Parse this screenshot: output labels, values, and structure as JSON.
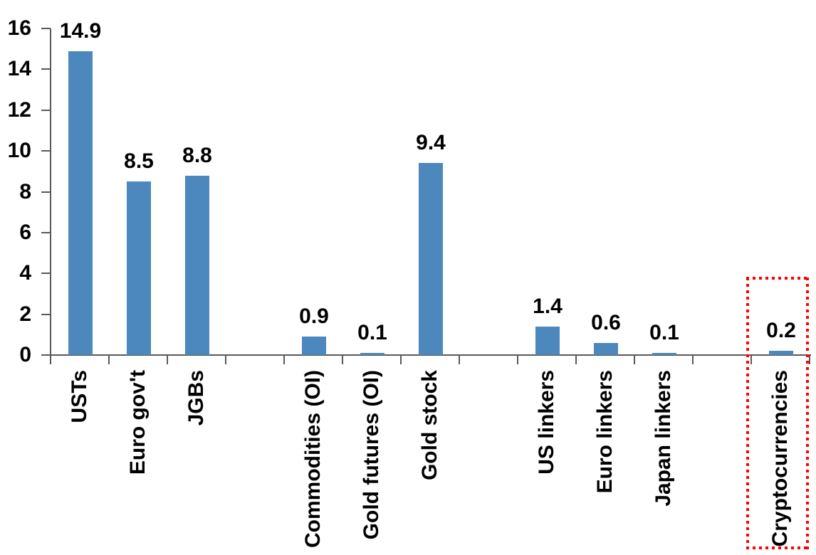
{
  "chart_data": {
    "type": "bar",
    "title": "",
    "xlabel": "",
    "ylabel": "",
    "categories": [
      "USTs",
      "Euro gov't",
      "JGBs",
      "Commodities (OI)",
      "Gold futures (OI)",
      "Gold stock",
      "US linkers",
      "Euro linkers",
      "Japan linkers",
      "Cryptocurrencies"
    ],
    "values": [
      14.9,
      8.5,
      8.8,
      0.9,
      0.1,
      9.4,
      1.4,
      0.6,
      0.1,
      0.2
    ],
    "value_labels": [
      "14.9",
      "8.5",
      "8.8",
      "0.9",
      "0.1",
      "9.4",
      "1.4",
      "0.6",
      "0.1",
      "0.2"
    ],
    "y_ticks": [
      0,
      2,
      4,
      6,
      8,
      10,
      12,
      14,
      16
    ],
    "ylim": [
      0,
      16
    ],
    "grid": "off",
    "legend": "none",
    "layout_hints": {
      "slots": [
        1,
        2,
        3,
        5,
        6,
        7,
        9,
        10,
        11,
        13
      ],
      "n_slots": 13,
      "category_label_rotation": "vertical-bottom-to-top"
    },
    "colors": {
      "bar": "#4C87BE",
      "axis": "#595959",
      "text": "#000000"
    },
    "highlight": {
      "category": "Cryptocurrencies",
      "border_color": "#FF0000",
      "border_style": "square-dotted"
    }
  }
}
